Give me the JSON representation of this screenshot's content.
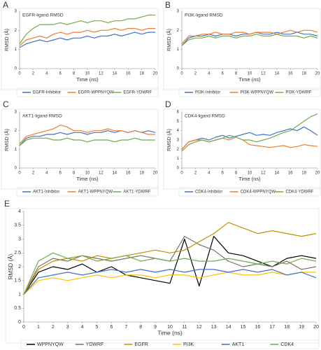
{
  "chart_data": [
    {
      "type": "line",
      "label": "A",
      "title": "EGFR-ligand RMSD",
      "xlabel": "Time (ns)",
      "ylabel": "RMSD (Å)",
      "x": [
        0,
        1,
        2,
        3,
        4,
        5,
        6,
        7,
        8,
        9,
        10,
        11,
        12,
        13,
        14,
        15,
        16,
        17,
        18,
        19,
        20
      ],
      "xlim": [
        0,
        20
      ],
      "xticks": [
        0,
        2,
        4,
        6,
        8,
        10,
        12,
        14,
        16,
        18,
        20
      ],
      "ylim": [
        0,
        3
      ],
      "yticks": [
        0,
        1,
        2,
        3
      ],
      "series": [
        {
          "name": "EGFR-Inhibitor",
          "color": "#4472c4",
          "values": [
            1.1,
            1.3,
            1.4,
            1.5,
            1.4,
            1.5,
            1.6,
            1.5,
            1.6,
            1.6,
            1.7,
            1.6,
            1.7,
            1.7,
            1.8,
            1.7,
            1.8,
            1.9,
            1.8,
            1.9,
            1.9
          ]
        },
        {
          "name": "EGFR-WPPNYQW",
          "color": "#ed7d31",
          "values": [
            1.2,
            1.5,
            1.6,
            1.7,
            1.6,
            1.8,
            1.9,
            1.8,
            1.9,
            1.9,
            2.0,
            1.9,
            2.0,
            2.0,
            2.1,
            2.0,
            2.1,
            2.1,
            2.0,
            2.1,
            2.1
          ]
        },
        {
          "name": "EGFR-YDWRF",
          "color": "#70ad47",
          "values": [
            1.3,
            1.8,
            2.1,
            2.3,
            2.3,
            2.3,
            2.4,
            2.3,
            2.4,
            2.5,
            2.4,
            2.5,
            2.5,
            2.4,
            2.5,
            2.5,
            2.6,
            2.6,
            2.7,
            2.8,
            2.8
          ]
        }
      ]
    },
    {
      "type": "line",
      "label": "B",
      "title": "PI3K-ligand RMSD",
      "xlabel": "Time (ns)",
      "ylabel": "RMSD (Å)",
      "x": [
        0,
        1,
        2,
        3,
        4,
        5,
        6,
        7,
        8,
        9,
        10,
        11,
        12,
        13,
        14,
        15,
        16,
        17,
        18,
        19,
        20
      ],
      "xlim": [
        0,
        20
      ],
      "xticks": [
        0,
        2,
        4,
        6,
        8,
        10,
        12,
        14,
        16,
        18,
        20
      ],
      "ylim": [
        0,
        3
      ],
      "yticks": [
        0,
        1,
        2,
        3
      ],
      "series": [
        {
          "name": "PI3K-Inhibitor",
          "color": "#4472c4",
          "values": [
            1.2,
            1.6,
            1.7,
            1.7,
            1.8,
            1.7,
            1.8,
            1.8,
            1.7,
            1.8,
            1.8,
            1.9,
            1.8,
            1.8,
            1.9,
            1.8,
            1.8,
            1.9,
            1.8,
            1.8,
            1.7
          ]
        },
        {
          "name": "PI3K-WPPNYQW",
          "color": "#ed7d31",
          "values": [
            1.3,
            1.7,
            1.7,
            1.8,
            1.8,
            1.9,
            1.8,
            1.8,
            1.9,
            1.9,
            1.8,
            1.9,
            1.9,
            1.9,
            1.8,
            1.9,
            2.0,
            1.9,
            2.0,
            2.0,
            1.9
          ]
        },
        {
          "name": "PI3K-YDWRF",
          "color": "#70ad47",
          "values": [
            1.2,
            1.5,
            1.6,
            1.6,
            1.7,
            1.6,
            1.7,
            1.7,
            1.6,
            1.7,
            1.7,
            1.8,
            1.7,
            1.7,
            1.8,
            1.7,
            1.7,
            1.7,
            1.6,
            1.7,
            1.6
          ]
        }
      ]
    },
    {
      "type": "line",
      "label": "C",
      "title": "AKT1-ligand RMSD",
      "xlabel": "Time (ns)",
      "ylabel": "RMSD (Å)",
      "x": [
        0,
        1,
        2,
        3,
        4,
        5,
        6,
        7,
        8,
        9,
        10,
        11,
        12,
        13,
        14,
        15,
        16,
        17,
        18,
        19,
        20
      ],
      "xlim": [
        0,
        20
      ],
      "xticks": [
        0,
        2,
        4,
        6,
        8,
        10,
        12,
        14,
        16,
        18,
        20
      ],
      "ylim": [
        0,
        3
      ],
      "yticks": [
        0,
        1,
        2,
        3
      ],
      "series": [
        {
          "name": "AKT1-Inhibitor",
          "color": "#4472c4",
          "values": [
            1.2,
            1.6,
            1.7,
            1.7,
            1.8,
            1.8,
            1.9,
            1.8,
            1.9,
            1.9,
            1.8,
            1.9,
            1.9,
            2.0,
            1.9,
            2.0,
            1.9,
            2.0,
            1.9,
            2.0,
            1.9
          ]
        },
        {
          "name": "AKT1-WPPNYQW",
          "color": "#ed7d31",
          "values": [
            1.3,
            1.7,
            1.8,
            1.9,
            2.0,
            2.1,
            2.3,
            2.2,
            2.0,
            2.0,
            1.9,
            2.0,
            2.0,
            2.1,
            2.0,
            2.0,
            1.9,
            2.0,
            1.9,
            1.8,
            1.8
          ]
        },
        {
          "name": "AKT1-YDWRF",
          "color": "#70ad47",
          "values": [
            1.2,
            1.5,
            1.6,
            1.6,
            1.6,
            1.5,
            1.5,
            1.6,
            1.5,
            1.5,
            1.4,
            1.5,
            1.5,
            1.5,
            1.4,
            1.5,
            1.5,
            1.6,
            1.5,
            1.5,
            1.5
          ]
        }
      ]
    },
    {
      "type": "line",
      "label": "D",
      "title": "CDK4-ligand RMSD",
      "xlabel": "Time (ns)",
      "ylabel": "RMSD (Å)",
      "x": [
        0,
        1,
        2,
        3,
        4,
        5,
        6,
        7,
        8,
        9,
        10,
        11,
        12,
        13,
        14,
        15,
        16,
        17,
        18,
        19,
        20
      ],
      "xlim": [
        0,
        20
      ],
      "xticks": [
        0,
        2,
        4,
        6,
        8,
        10,
        12,
        14,
        16,
        18,
        20
      ],
      "ylim": [
        0,
        6
      ],
      "yticks": [
        0,
        1,
        2,
        3,
        4,
        5,
        6
      ],
      "series": [
        {
          "name": "CDK4-Inhibitor",
          "color": "#4472c4",
          "values": [
            2.0,
            2.8,
            3.0,
            3.2,
            3.0,
            3.3,
            3.5,
            3.2,
            3.4,
            3.6,
            3.8,
            3.5,
            3.6,
            3.5,
            3.8,
            4.0,
            4.2,
            4.0,
            4.4,
            4.0,
            3.5
          ]
        },
        {
          "name": "CDK4-WPPNYQW",
          "color": "#ed7d31",
          "values": [
            2.0,
            2.8,
            3.0,
            3.0,
            2.8,
            3.0,
            3.2,
            3.0,
            3.3,
            3.0,
            2.5,
            2.4,
            2.3,
            2.2,
            2.3,
            2.4,
            2.2,
            2.3,
            2.5,
            2.4,
            2.3
          ]
        },
        {
          "name": "CDK4-YDWRF",
          "color": "#70ad47",
          "values": [
            1.8,
            2.5,
            2.8,
            3.0,
            2.8,
            3.0,
            3.2,
            3.5,
            3.3,
            3.0,
            3.0,
            2.8,
            3.0,
            3.2,
            3.5,
            3.8,
            4.0,
            4.5,
            5.0,
            5.5,
            5.8
          ]
        }
      ]
    },
    {
      "type": "line",
      "label": "E",
      "xlabel": "Time (ns)",
      "ylabel": "RMSD (Å)",
      "x": [
        0,
        1,
        2,
        3,
        4,
        5,
        6,
        7,
        8,
        9,
        10,
        11,
        12,
        13,
        14,
        15,
        16,
        17,
        18,
        19,
        20
      ],
      "xlim": [
        0,
        20
      ],
      "xticks": [
        0,
        1,
        2,
        3,
        4,
        5,
        6,
        7,
        8,
        9,
        10,
        11,
        12,
        13,
        14,
        15,
        16,
        17,
        18,
        19,
        20
      ],
      "ylim": [
        0,
        4
      ],
      "yticks": [
        0,
        0.5,
        1,
        1.5,
        2,
        2.5,
        3,
        3.5,
        4
      ],
      "series": [
        {
          "name": "WPPNYQW",
          "color": "#000000",
          "values": [
            1.0,
            1.8,
            2.0,
            1.9,
            2.1,
            1.8,
            2.0,
            1.7,
            1.6,
            1.5,
            1.4,
            3.0,
            1.3,
            3.1,
            2.5,
            2.4,
            2.2,
            2.0,
            2.3,
            2.4,
            2.3
          ]
        },
        {
          "name": "YDWRF",
          "color": "#7f7064",
          "values": [
            1.0,
            2.0,
            2.3,
            2.2,
            2.4,
            2.3,
            2.2,
            2.3,
            2.4,
            2.3,
            2.2,
            3.1,
            2.8,
            2.6,
            2.2,
            2.0,
            2.1,
            2.0,
            2.2,
            1.9,
            2.0
          ]
        },
        {
          "name": "EGFR",
          "color": "#bf9000",
          "values": [
            1.0,
            1.9,
            2.2,
            2.3,
            2.2,
            2.4,
            2.3,
            2.4,
            2.5,
            2.6,
            2.5,
            2.6,
            2.9,
            3.2,
            3.6,
            3.4,
            3.2,
            3.3,
            3.2,
            3.1,
            3.2
          ]
        },
        {
          "name": "PI3K",
          "color": "#ffc000",
          "values": [
            1.0,
            1.5,
            1.6,
            1.5,
            1.6,
            1.7,
            1.6,
            1.7,
            1.7,
            1.6,
            1.7,
            1.7,
            1.6,
            1.7,
            1.8,
            1.7,
            1.7,
            1.8,
            1.7,
            1.8,
            1.8
          ]
        },
        {
          "name": "AKT1",
          "color": "#4472c4",
          "values": [
            1.0,
            1.6,
            1.7,
            1.8,
            1.7,
            1.8,
            1.9,
            1.8,
            1.9,
            1.8,
            1.9,
            1.8,
            1.9,
            1.9,
            1.8,
            1.9,
            1.8,
            1.9,
            1.7,
            1.8,
            1.6
          ]
        },
        {
          "name": "CDK4",
          "color": "#70ad47",
          "values": [
            1.0,
            2.2,
            2.5,
            2.3,
            2.4,
            2.2,
            2.3,
            2.4,
            2.2,
            2.3,
            2.2,
            2.3,
            2.2,
            2.2,
            2.3,
            2.2,
            2.1,
            2.2,
            2.1,
            2.3,
            2.2
          ]
        }
      ]
    }
  ]
}
